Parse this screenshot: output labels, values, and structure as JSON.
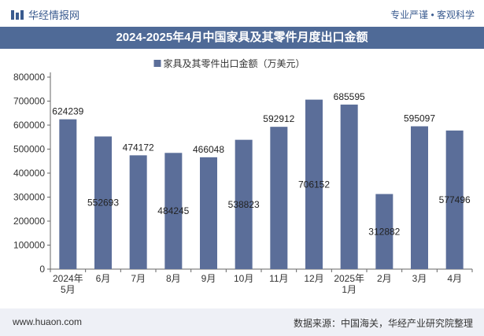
{
  "header": {
    "brand_name": "华经情报网",
    "tagline": "专业严谨 • 客观科学"
  },
  "title": "2024-2025年4月中国家具及其零件月度出口金额",
  "footer": {
    "website": "www.huaon.com",
    "source": "数据来源：中国海关，华经产业研究院整理"
  },
  "colors": {
    "bar": "#5b6e99",
    "title_bg": "#4f6a97",
    "brand": "#3a5b8f"
  },
  "chart_data": {
    "type": "bar",
    "title": "2024-2025年4月中国家具及其零件月度出口金额",
    "legend": "家具及其零件出口金额（万美元）",
    "legend_position": "top-center",
    "categories": [
      "2024年\n5月",
      "6月",
      "7月",
      "8月",
      "9月",
      "10月",
      "11月",
      "12月",
      "2025年\n1月",
      "2月",
      "3月",
      "4月"
    ],
    "series": [
      {
        "name": "家具及其零件出口金额（万美元）",
        "values": [
          624239,
          552693,
          474172,
          484245,
          466048,
          538823,
          592912,
          706152,
          685595,
          312882,
          595097,
          577496
        ],
        "label_positions": [
          "above",
          "inside",
          "above",
          "inside",
          "above",
          "inside",
          "above",
          "inside",
          "above",
          "inside",
          "above",
          "inside"
        ]
      }
    ],
    "yticks": [
      0,
      100000,
      200000,
      300000,
      400000,
      500000,
      600000,
      700000,
      800000
    ],
    "ylim": [
      0,
      800000
    ],
    "xlabel": "",
    "ylabel": "",
    "grid": false
  }
}
